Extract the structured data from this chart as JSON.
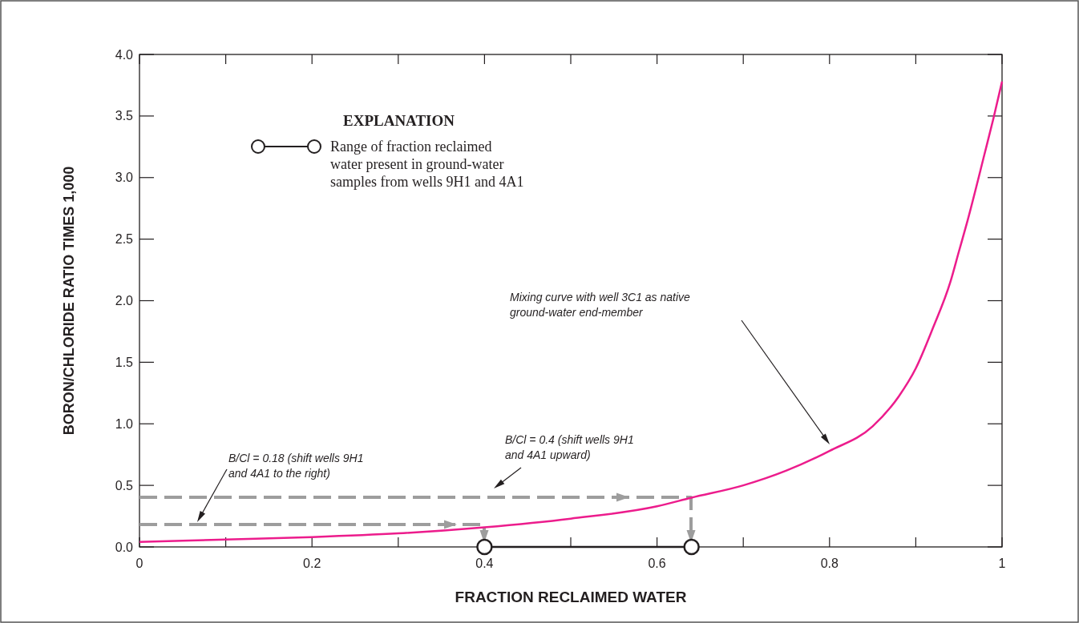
{
  "chart_data": {
    "type": "line",
    "xlabel": "FRACTION RECLAIMED WATER",
    "ylabel": "BORON/CHLORIDE RATIO TIMES 1,000",
    "legend_title": "EXPLANATION",
    "legend": "top left",
    "grid": false,
    "xlim": [
      0,
      1
    ],
    "ylim": [
      0,
      4
    ],
    "xticks": [
      0,
      {
        "value": 0.1,
        "label": null
      },
      0.2,
      {
        "value": 0.3,
        "label": null
      },
      0.4,
      {
        "value": 0.5,
        "label": null
      },
      0.6,
      {
        "value": 0.7,
        "label": null
      },
      0.8,
      {
        "value": 0.9,
        "label": null
      },
      1
    ],
    "yticks": [
      {
        "value": 0,
        "label": "0.0"
      },
      0.5,
      {
        "value": 1,
        "label": "1.0"
      },
      1.5,
      {
        "value": 2,
        "label": "2.0"
      },
      2.5,
      {
        "value": 3,
        "label": "3.0"
      },
      3.5,
      {
        "value": 4,
        "label": "4.0"
      }
    ],
    "series": [
      {
        "color": "#ec1c8c",
        "x": [
          0,
          0.1,
          0.2,
          0.3,
          0.4,
          0.5,
          0.6,
          0.64,
          0.7,
          0.75,
          0.8,
          0.85,
          0.88,
          0.9,
          0.92,
          0.94,
          0.95,
          0.96,
          0.98,
          0.99,
          1
        ],
        "values": [
          0.04,
          0.06,
          0.08,
          0.11,
          0.16,
          0.23,
          0.33,
          0.4,
          0.5,
          0.62,
          0.78,
          0.98,
          1.22,
          1.45,
          1.78,
          2.15,
          2.4,
          2.65,
          3.2,
          3.48,
          3.78
        ]
      },
      {
        "name": "Range of fraction reclaimed water present in ground-water samples from wells 9H1 and 4A1",
        "color": "#231f20",
        "marker": "circle",
        "x": [
          0.4,
          0.64
        ],
        "values": [
          0,
          0
        ]
      }
    ],
    "annotations": [
      "B/Cl = 0.18 (shift wells 9H1 and 4A1 to the right)",
      "B/Cl = 0.4 (shift wells 9H1 and 4A1 upward)",
      "Mixing curve with well 3C1 as native ground-water end-member"
    ]
  }
}
